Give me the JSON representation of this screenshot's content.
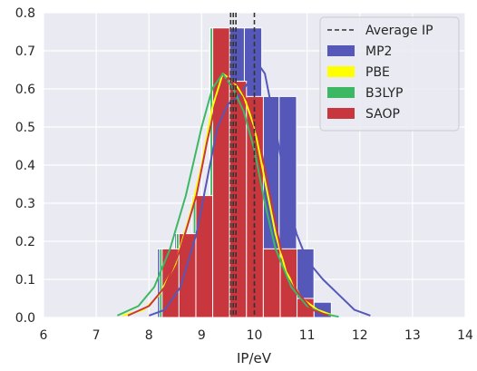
{
  "chart_data": {
    "type": "histogram",
    "title": "",
    "xlabel": "IP/eV",
    "ylabel": "",
    "xlim": [
      6,
      14
    ],
    "ylim": [
      0,
      0.8
    ],
    "xticks": [
      6,
      7,
      8,
      9,
      10,
      11,
      12,
      13,
      14
    ],
    "yticks": [
      0.0,
      0.1,
      0.2,
      0.3,
      0.4,
      0.5,
      0.6,
      0.7,
      0.8
    ],
    "xtick_labels": [
      "6",
      "7",
      "8",
      "9",
      "10",
      "11",
      "12",
      "13",
      "14"
    ],
    "ytick_labels": [
      "0.0",
      "0.1",
      "0.2",
      "0.3",
      "0.4",
      "0.5",
      "0.6",
      "0.7",
      "0.8"
    ],
    "grid": true,
    "background": "#eaeaf2",
    "legend_position": "top-right",
    "average_lines": {
      "name": "Average IP",
      "style": "dashed",
      "color": "#333333",
      "x": [
        9.55,
        9.6,
        9.65,
        10.0
      ]
    },
    "legend": [
      {
        "label": "Average IP",
        "kind": "line",
        "color": "#333333"
      },
      {
        "label": "MP2",
        "kind": "patch",
        "color": "#5558b8"
      },
      {
        "label": "PBE",
        "kind": "patch",
        "color": "#ffff00"
      },
      {
        "label": "B3LYP",
        "kind": "patch",
        "color": "#3cb864"
      },
      {
        "label": "SAOP",
        "kind": "patch",
        "color": "#c8363e"
      }
    ],
    "series": [
      {
        "name": "MP2",
        "color": "#5558b8",
        "bins": [
          {
            "x0": 8.16,
            "x1": 8.49,
            "value": 0.18
          },
          {
            "x0": 8.49,
            "x1": 8.82,
            "value": 0.22
          },
          {
            "x0": 8.82,
            "x1": 9.15,
            "value": 0.32
          },
          {
            "x0": 9.15,
            "x1": 9.48,
            "value": 0.72
          },
          {
            "x0": 9.48,
            "x1": 9.81,
            "value": 0.76
          },
          {
            "x0": 9.81,
            "x1": 10.14,
            "value": 0.76
          },
          {
            "x0": 10.14,
            "x1": 10.47,
            "value": 0.58
          },
          {
            "x0": 10.47,
            "x1": 10.8,
            "value": 0.58
          },
          {
            "x0": 10.8,
            "x1": 11.13,
            "value": 0.18
          },
          {
            "x0": 11.13,
            "x1": 11.46,
            "value": 0.04
          }
        ],
        "kde": {
          "x": [
            8.0,
            8.3,
            8.6,
            8.9,
            9.1,
            9.3,
            9.5,
            9.7,
            9.9,
            10.0,
            10.2,
            10.4,
            10.6,
            10.8,
            11.0,
            11.3,
            11.6,
            11.9,
            12.2
          ],
          "y": [
            0.005,
            0.02,
            0.08,
            0.22,
            0.36,
            0.5,
            0.56,
            0.58,
            0.62,
            0.68,
            0.64,
            0.5,
            0.34,
            0.22,
            0.15,
            0.1,
            0.06,
            0.02,
            0.005
          ]
        }
      },
      {
        "name": "PBE",
        "color": "#ffff00",
        "bins": [],
        "kde": {
          "x": [
            7.5,
            7.9,
            8.2,
            8.5,
            8.8,
            9.0,
            9.2,
            9.4,
            9.6,
            9.8,
            10.0,
            10.2,
            10.4,
            10.6,
            10.9,
            11.2,
            11.5
          ],
          "y": [
            0.005,
            0.02,
            0.06,
            0.14,
            0.28,
            0.4,
            0.55,
            0.64,
            0.62,
            0.58,
            0.5,
            0.36,
            0.22,
            0.12,
            0.05,
            0.02,
            0.005
          ]
        }
      },
      {
        "name": "B3LYP",
        "color": "#3cb864",
        "bins": [
          {
            "x0": 8.2,
            "x1": 8.52,
            "value": 0.18
          },
          {
            "x0": 8.52,
            "x1": 8.84,
            "value": 0.22
          },
          {
            "x0": 8.84,
            "x1": 9.16,
            "value": 0.32
          },
          {
            "x0": 9.16,
            "x1": 9.48,
            "value": 0.76
          },
          {
            "x0": 9.48,
            "x1": 9.8,
            "value": 0.62
          },
          {
            "x0": 9.8,
            "x1": 10.12,
            "value": 0.58
          },
          {
            "x0": 10.12,
            "x1": 10.44,
            "value": 0.18
          },
          {
            "x0": 10.44,
            "x1": 10.76,
            "value": 0.18
          },
          {
            "x0": 10.76,
            "x1": 11.08,
            "value": 0.05
          }
        ],
        "kde": {
          "x": [
            7.4,
            7.8,
            8.1,
            8.4,
            8.7,
            9.0,
            9.2,
            9.4,
            9.6,
            9.8,
            10.0,
            10.2,
            10.4,
            10.7,
            11.0,
            11.3,
            11.6
          ],
          "y": [
            0.005,
            0.03,
            0.08,
            0.18,
            0.32,
            0.5,
            0.6,
            0.64,
            0.6,
            0.54,
            0.44,
            0.3,
            0.18,
            0.08,
            0.03,
            0.01,
            0.002
          ]
        }
      },
      {
        "name": "SAOP",
        "color": "#c8363e",
        "bins": [
          {
            "x0": 8.25,
            "x1": 8.57,
            "value": 0.18
          },
          {
            "x0": 8.57,
            "x1": 8.89,
            "value": 0.22
          },
          {
            "x0": 8.89,
            "x1": 9.21,
            "value": 0.32
          },
          {
            "x0": 9.21,
            "x1": 9.53,
            "value": 0.76
          },
          {
            "x0": 9.53,
            "x1": 9.85,
            "value": 0.62
          },
          {
            "x0": 9.85,
            "x1": 10.17,
            "value": 0.58
          },
          {
            "x0": 10.17,
            "x1": 10.49,
            "value": 0.18
          },
          {
            "x0": 10.49,
            "x1": 10.81,
            "value": 0.18
          },
          {
            "x0": 10.81,
            "x1": 11.13,
            "value": 0.05
          }
        ],
        "kde": {
          "x": [
            7.6,
            8.0,
            8.3,
            8.6,
            8.9,
            9.1,
            9.3,
            9.5,
            9.7,
            9.9,
            10.1,
            10.3,
            10.5,
            10.8,
            11.1,
            11.4
          ],
          "y": [
            0.005,
            0.03,
            0.08,
            0.18,
            0.32,
            0.46,
            0.58,
            0.63,
            0.61,
            0.56,
            0.46,
            0.32,
            0.18,
            0.07,
            0.02,
            0.005
          ]
        }
      }
    ]
  }
}
